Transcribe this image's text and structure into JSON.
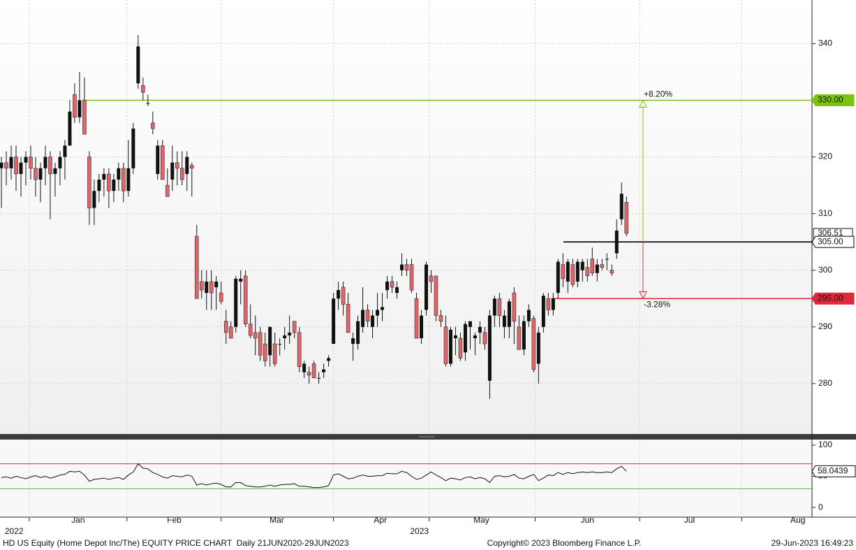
{
  "chart_data": {
    "type": "candlestick",
    "x": [
      0,
      1,
      2,
      3,
      4,
      5,
      6,
      7,
      8,
      9,
      10,
      11,
      12,
      13,
      14,
      15,
      16,
      17,
      18,
      19,
      20,
      21,
      22,
      23,
      24,
      25,
      26,
      27,
      28,
      29,
      30,
      31,
      32,
      33,
      34,
      35,
      36,
      37,
      38,
      39,
      40,
      41,
      42,
      43,
      44,
      45,
      46,
      47,
      48,
      49,
      50,
      51,
      52,
      53,
      54,
      55,
      56,
      57,
      58,
      59,
      60,
      61,
      62,
      63,
      64,
      65,
      66,
      67,
      68,
      69,
      70,
      71,
      72,
      73,
      74,
      75,
      76,
      77,
      78,
      79,
      80,
      81,
      82,
      83,
      84,
      85,
      86,
      87,
      88,
      89,
      90,
      91,
      92,
      93,
      94,
      95,
      96,
      97,
      98,
      99,
      100,
      101,
      102,
      103,
      104,
      105,
      106,
      107,
      108,
      109,
      110,
      111,
      112,
      113,
      114,
      115,
      116,
      117,
      118,
      119,
      120,
      121,
      122,
      123,
      124,
      125,
      126,
      127,
      128
    ],
    "open": [
      318,
      319,
      318,
      320,
      317,
      319,
      320,
      318,
      316,
      318,
      320,
      317,
      318,
      320,
      322,
      331,
      327,
      330,
      320,
      311,
      314,
      316,
      317,
      314,
      316,
      318,
      314,
      318,
      333,
      332.6,
      329.5,
      326,
      317,
      322,
      315,
      316,
      319,
      318,
      317,
      318.5,
      306,
      298,
      296,
      298,
      297,
      296,
      291,
      290,
      290,
      298,
      299,
      290.5,
      289,
      289,
      287,
      285,
      287,
      287,
      288,
      288.5,
      291,
      289,
      282,
      282,
      283.5,
      281,
      282,
      284,
      287,
      295,
      297,
      294,
      287,
      287,
      290,
      293,
      290,
      292,
      293,
      296.5,
      298,
      296,
      300,
      301,
      301,
      295,
      288,
      293,
      299,
      299,
      292,
      290,
      283.5,
      288,
      288,
      285.5,
      290,
      288,
      289,
      289,
      280.5,
      292,
      295,
      290,
      290,
      296,
      290,
      286,
      291,
      291.5,
      283.5,
      290,
      295,
      293,
      296,
      301,
      298,
      301,
      298,
      300,
      300.5,
      302,
      299.5,
      301,
      302,
      300,
      303,
      309,
      312
    ],
    "high": [
      320,
      321,
      322,
      322,
      320,
      321,
      322,
      320,
      319,
      322,
      321,
      319,
      321,
      323,
      330,
      333,
      335,
      334,
      321,
      316,
      317,
      318,
      318,
      317,
      319,
      319,
      323,
      326,
      341.5,
      334,
      331,
      328,
      323,
      323,
      318,
      322,
      321,
      321,
      321,
      319,
      308,
      300,
      300,
      300,
      299,
      298,
      293,
      291,
      299,
      300,
      300,
      294,
      292,
      290,
      289,
      290,
      289,
      288,
      290,
      292,
      291,
      290,
      284,
      283,
      284,
      282,
      283.5,
      285,
      296,
      298,
      298,
      296,
      289,
      292,
      297,
      294,
      293,
      296,
      296,
      299,
      299,
      298,
      303,
      302,
      302,
      296,
      293,
      301.5,
      300,
      299,
      293,
      292,
      290,
      290,
      289,
      291,
      291,
      289,
      291,
      290,
      293,
      295.5,
      296,
      293,
      295,
      297,
      292,
      292,
      294,
      292,
      290,
      296,
      296,
      296,
      302,
      303,
      302,
      302,
      302,
      302,
      302,
      304,
      302,
      302,
      303,
      301,
      309,
      315.5,
      313
    ],
    "low": [
      311,
      315,
      316,
      314,
      313,
      315,
      316,
      313,
      312,
      315,
      309,
      313,
      315,
      316,
      322,
      326,
      326,
      324,
      308,
      308,
      312,
      313,
      311,
      312,
      314,
      312,
      313,
      317,
      332,
      330,
      329,
      324,
      316,
      316,
      313,
      314,
      315,
      315,
      314,
      313,
      295,
      295,
      293,
      293,
      293,
      294,
      287,
      288,
      289,
      294,
      290,
      288,
      285,
      284,
      283,
      283,
      283,
      285,
      286,
      287,
      288,
      282,
      281,
      280,
      281,
      280,
      281,
      283,
      287,
      293,
      292,
      289,
      284,
      286,
      289,
      290,
      288,
      290,
      291,
      295,
      296,
      295,
      299,
      299,
      296,
      288,
      287,
      292,
      296,
      291,
      290,
      283,
      283,
      285,
      284,
      284,
      286,
      285,
      287,
      286,
      277.3,
      290,
      290,
      288,
      288,
      287,
      286,
      285,
      290,
      282,
      280,
      289,
      292,
      292,
      295,
      297,
      296,
      297,
      297,
      298,
      298,
      299,
      298,
      300,
      300,
      299,
      302,
      308,
      306
    ],
    "close": [
      319,
      318,
      320,
      317,
      319,
      320,
      318,
      316,
      318,
      320,
      317,
      318,
      320,
      322,
      328,
      327,
      330,
      324,
      311,
      314,
      316,
      317,
      314,
      316,
      318,
      314,
      318,
      325,
      339.5,
      331.4,
      329.5,
      325,
      322,
      316,
      313,
      319,
      318,
      316,
      320,
      318,
      295,
      296.5,
      298,
      296,
      298,
      294.5,
      289,
      288,
      298.5,
      298.5,
      290.5,
      288.5,
      288,
      285,
      284,
      290,
      283.5,
      287,
      288.5,
      289,
      289,
      283,
      283.5,
      281.5,
      281,
      281,
      282.5,
      284.5,
      295,
      296.5,
      294,
      289,
      288,
      291,
      293,
      291,
      292,
      293,
      293.5,
      298,
      297,
      297,
      301,
      300,
      296.5,
      288,
      292,
      301,
      298,
      292,
      291,
      283.5,
      289.5,
      288.5,
      284.5,
      290.5,
      291,
      288.5,
      290,
      287,
      292,
      295,
      292,
      292,
      294.5,
      291,
      286,
      291,
      293,
      282.5,
      289,
      295.5,
      293,
      295,
      301.5,
      298.5,
      301.5,
      297.5,
      301.5,
      301.5,
      299,
      299.5,
      301,
      300.5,
      302,
      299.5,
      307,
      313.5,
      306.51
    ],
    "up_color": "#111111",
    "down_color": "#e0656a",
    "xlim": [
      -0.29,
      166
    ],
    "xticks": [
      5.7,
      25.7,
      45,
      68,
      87.6,
      109.3,
      130.7,
      151.6
    ],
    "month_labels": [
      {
        "value": 15.7,
        "label": "Jan"
      },
      {
        "value": 35.4,
        "label": "Feb"
      },
      {
        "value": 56.4,
        "label": "Mar"
      },
      {
        "value": 77.6,
        "label": "Apr"
      },
      {
        "value": 98.3,
        "label": "May"
      },
      {
        "value": 120,
        "label": "Jun"
      },
      {
        "value": 140.9,
        "label": "Jul"
      },
      {
        "value": 163.1,
        "label": "Aug"
      }
    ],
    "year_labels": [
      {
        "value": 2.6,
        "label": "2022"
      },
      {
        "value": 85.6,
        "label": "2023"
      }
    ],
    "ylim": [
      271.1,
      347.7
    ],
    "yticks": [
      280,
      290,
      300,
      310,
      320,
      330,
      340
    ],
    "grid": true,
    "levels": [
      {
        "value": 330,
        "value_label": "330.00",
        "color": "#7cc414",
        "from_x": 16.6
      },
      {
        "value": 305,
        "value_label": "305.00",
        "color": "#000000",
        "from_x": 115.1
      },
      {
        "value": 295,
        "value_label": "295.00",
        "color": "#e0283c",
        "from_x": 112.6
      }
    ],
    "annotations": [
      {
        "text": "+8.20%",
        "x": 131.4,
        "from": 305,
        "to": 330,
        "color": "#7cc414"
      },
      {
        "text": "-3.28%",
        "x": 131.4,
        "from": 305,
        "to": 295,
        "color": "#e0283c"
      }
    ],
    "rsi": {
      "values": [
        48,
        49,
        47,
        50,
        48,
        46,
        49,
        51,
        48,
        50,
        47,
        49,
        52,
        53,
        58,
        57,
        58,
        52,
        42,
        45,
        46,
        47,
        45,
        47,
        48,
        45,
        52,
        57,
        70,
        63,
        62,
        56,
        53,
        49,
        47,
        51,
        50,
        49,
        52,
        50,
        36,
        38,
        36,
        38,
        39,
        37,
        33,
        33,
        40,
        40,
        35,
        34,
        33,
        33,
        34,
        36,
        34,
        36,
        37,
        37,
        38,
        34,
        34,
        33,
        32,
        32,
        33,
        35,
        52,
        54,
        50,
        46,
        47,
        50,
        52,
        50,
        50,
        51,
        51,
        55,
        54,
        54,
        58,
        56,
        50,
        45,
        47,
        52,
        57,
        52,
        48,
        43,
        47,
        46,
        44,
        48,
        49,
        46,
        48,
        46,
        40,
        50,
        51,
        49,
        50,
        53,
        47,
        46,
        50,
        53,
        43,
        47,
        52,
        51,
        56,
        53,
        56,
        54,
        56,
        57,
        56,
        57,
        56,
        56,
        57,
        56,
        62,
        66,
        58.0439
      ],
      "color": "#111111",
      "ylim": [
        -15.6,
        108.9
      ],
      "yticks": [
        0,
        50,
        100
      ],
      "levels": [
        {
          "value": 70,
          "color": "#e0283c"
        },
        {
          "value": 30,
          "color": "#3cc43c"
        }
      ]
    },
    "footer": {
      "left": "HD US Equity (Home Depot Inc/The) EQUITY PRICE CHART  Daily 21JUN2020-29JUN2023",
      "center": "Copyright© 2023 Bloomberg Finance L.P.",
      "right": "29-Jun-2023 16:49:23"
    }
  }
}
